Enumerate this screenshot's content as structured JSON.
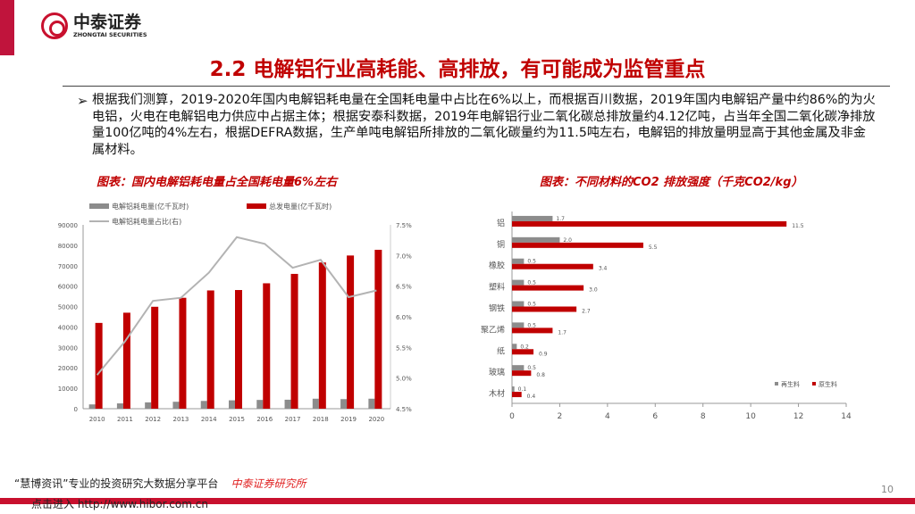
{
  "header": {
    "logo_cn": "中泰证券",
    "logo_en": "ZHONGTAI SECURITIES",
    "title": "2.2 电解铝行业高耗能、高排放，有可能成为监管重点"
  },
  "body": {
    "bullet": "➢",
    "text": "根据我们测算，2019-2020年国内电解铝耗电量在全国耗电量中占比在6%以上，而根据百川数据，2019年国内电解铝产量中约86%的为火电铝，火电在电解铝电力供应中占据主体；根据安泰科数据，2019年电解铝行业二氧化碳总排放量约4.12亿吨，占当年全国二氧化碳净排放量100亿吨的4%左右，根据DEFRA数据，生产单吨电解铝所排放的二氧化碳量约为11.5吨左右，电解铝的排放量明显高于其他金属及非金属材料。"
  },
  "captions": {
    "left": "图表：国内电解铝耗电量占全国耗电量6%左右",
    "right": "图表：不同材料的CO2 排放强度（千克CO2/kg）"
  },
  "chart_data": [
    {
      "type": "bar",
      "combo_line": true,
      "categories": [
        "2010",
        "2011",
        "2012",
        "2013",
        "2014",
        "2015",
        "2016",
        "2017",
        "2018",
        "2019",
        "2020"
      ],
      "series": [
        {
          "name": "电解铝耗电量(亿千瓦时)",
          "axis": "left",
          "color": "#8c8c8c",
          "values": [
            2100,
            2600,
            3100,
            3400,
            3800,
            4100,
            4300,
            4400,
            4900,
            4700,
            4900
          ]
        },
        {
          "name": "总发电量(亿千瓦时)",
          "axis": "left",
          "color": "#c00000",
          "values": [
            42000,
            47000,
            49900,
            54300,
            57900,
            58100,
            61400,
            66000,
            71600,
            75000,
            77800
          ]
        },
        {
          "name": "电解铝耗电量占比(右)",
          "axis": "right",
          "type": "line",
          "color": "#b3b3b3",
          "values": [
            5.05,
            5.6,
            6.26,
            6.31,
            6.72,
            7.3,
            7.19,
            6.8,
            6.93,
            6.32,
            6.43
          ]
        }
      ],
      "ylim": [
        0,
        90000
      ],
      "yticks": [
        "0",
        "10000",
        "20000",
        "30000",
        "40000",
        "50000",
        "60000",
        "70000",
        "80000",
        "90000"
      ],
      "y2lim": [
        4.5,
        7.5
      ],
      "y2ticks": [
        "4.5%",
        "5.0%",
        "5.5%",
        "6.0%",
        "6.5%",
        "7.0%",
        "7.5%"
      ],
      "legend": "top"
    },
    {
      "type": "bar",
      "orientation": "horizontal",
      "categories": [
        "铝",
        "铜",
        "橡胶",
        "塑料",
        "钢铁",
        "聚乙烯",
        "纸",
        "玻璃",
        "木材"
      ],
      "series": [
        {
          "name": "再生料",
          "color": "#8c8c8c",
          "values": [
            1.7,
            2.0,
            0.5,
            0.5,
            0.5,
            0.5,
            0.2,
            0.5,
            0.1
          ],
          "labels": [
            "1.7",
            "2.0",
            "0.5",
            "0.5",
            "0.5",
            "0.5",
            "0.2",
            "0.5",
            "0.1"
          ]
        },
        {
          "name": "原生料",
          "color": "#c00000",
          "values": [
            11.5,
            5.5,
            3.4,
            3.0,
            2.7,
            1.7,
            0.9,
            0.8,
            0.4
          ],
          "labels": [
            "11.5",
            "5.5",
            "3.4",
            "3.0",
            "2.7",
            "1.7",
            "0.9",
            "0.8",
            "0.4"
          ]
        }
      ],
      "xlim": [
        0,
        14
      ],
      "xticks": [
        "0",
        "2",
        "4",
        "6",
        "8",
        "10",
        "12",
        "14"
      ],
      "legend": "bottom-right"
    }
  ],
  "footer": {
    "quote": "“慧博资讯”专业的投资研究大数据分享平台",
    "link": "点击进入 http://www.hibor.com.cn",
    "watermark": "中泰证券研究所",
    "page": "10"
  }
}
